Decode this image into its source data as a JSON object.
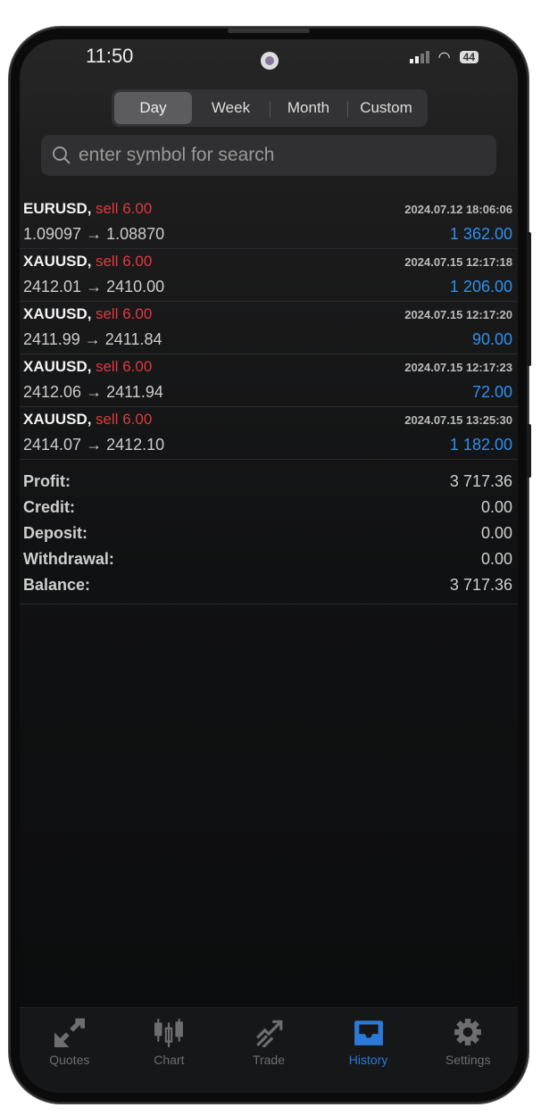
{
  "status": {
    "time": "11:50",
    "battery": "44"
  },
  "periods": [
    {
      "label": "Day",
      "active": true
    },
    {
      "label": "Week"
    },
    {
      "label": "Month"
    },
    {
      "label": "Custom"
    }
  ],
  "search": {
    "placeholder": "enter symbol for search",
    "icon": "search-icon"
  },
  "deals": [
    {
      "symbol": "EURUSD,",
      "side": "sell 6.00",
      "time": "2024.07.12 18:06:06",
      "open": "1.09097",
      "close": "1.08870",
      "profit": "1 362.00"
    },
    {
      "symbol": "XAUUSD,",
      "side": "sell 6.00",
      "time": "2024.07.15 12:17:18",
      "open": "2412.01",
      "close": "2410.00",
      "profit": "1 206.00"
    },
    {
      "symbol": "XAUUSD,",
      "side": "sell 6.00",
      "time": "2024.07.15 12:17:20",
      "open": "2411.99",
      "close": "2411.84",
      "profit": "90.00"
    },
    {
      "symbol": "XAUUSD,",
      "side": "sell 6.00",
      "time": "2024.07.15 12:17:23",
      "open": "2412.06",
      "close": "2411.94",
      "profit": "72.00"
    },
    {
      "symbol": "XAUUSD,",
      "side": "sell 6.00",
      "time": "2024.07.15 13:25:30",
      "open": "2414.07",
      "close": "2412.10",
      "profit": "1 182.00"
    }
  ],
  "arrow": "→",
  "summary": [
    {
      "label": "Profit:",
      "value": "3 717.36"
    },
    {
      "label": "Credit:",
      "value": "0.00"
    },
    {
      "label": "Deposit:",
      "value": "0.00"
    },
    {
      "label": "Withdrawal:",
      "value": "0.00"
    },
    {
      "label": "Balance:",
      "value": "3 717.36"
    }
  ],
  "tabs": [
    {
      "label": "Quotes",
      "icon": "quotes-icon"
    },
    {
      "label": "Chart",
      "icon": "candlestick-icon"
    },
    {
      "label": "Trade",
      "icon": "trade-icon"
    },
    {
      "label": "History",
      "icon": "inbox-icon",
      "active": true
    },
    {
      "label": "Settings",
      "icon": "gear-icon"
    }
  ],
  "colors": {
    "sell": "#e0393e",
    "profit": "#2f8ff0",
    "active_tab": "#2a7ad8"
  }
}
